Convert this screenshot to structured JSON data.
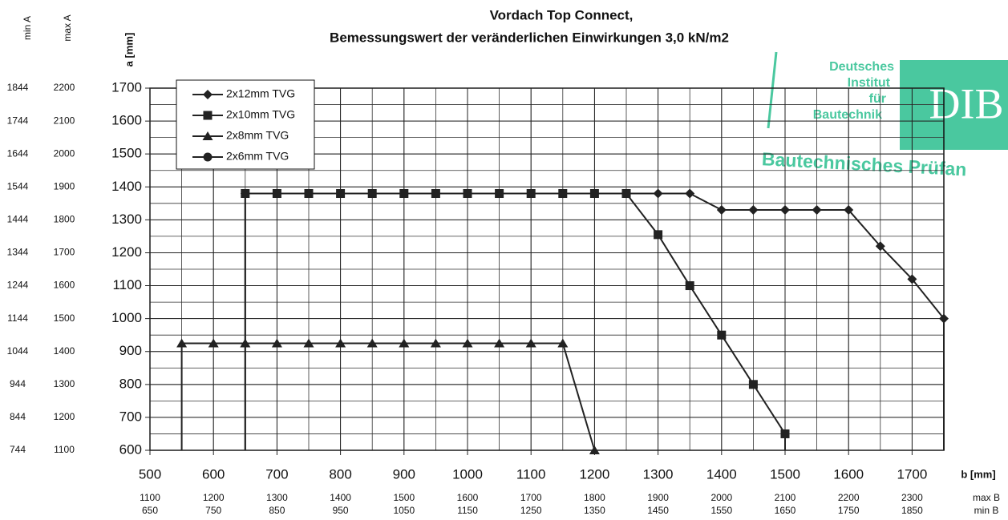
{
  "chart_data": {
    "type": "line",
    "title": "Vordach Top Connect,",
    "subtitle": "Bemessungswert der veränderlichen Einwirkungen 3,0 kN/m2",
    "ylabel": "a [mm]",
    "xlabel": "b [mm]",
    "x": [
      550,
      600,
      650,
      700,
      750,
      800,
      850,
      900,
      950,
      1000,
      1050,
      1100,
      1150,
      1200,
      1250,
      1300,
      1350,
      1400,
      1450,
      1500,
      1550,
      1600,
      1650,
      1700,
      1750
    ],
    "series": [
      {
        "name": "2x12mm TVG",
        "marker": "diamond",
        "color": "#222222",
        "values": [
          null,
          null,
          1380,
          1380,
          1380,
          1380,
          1380,
          1380,
          1380,
          1380,
          1380,
          1380,
          1380,
          1380,
          1380,
          1380,
          1380,
          1330,
          1330,
          1330,
          1330,
          1330,
          1220,
          1120,
          1000
        ]
      },
      {
        "name": "2x10mm TVG",
        "marker": "square",
        "color": "#222222",
        "values": [
          null,
          null,
          1380,
          1380,
          1380,
          1380,
          1380,
          1380,
          1380,
          1380,
          1380,
          1380,
          1380,
          1380,
          1380,
          1255,
          1100,
          950,
          800,
          650,
          null,
          null,
          null,
          null,
          null
        ]
      },
      {
        "name": "2x8mm TVG",
        "marker": "triangle",
        "color": "#222222",
        "values": [
          925,
          925,
          925,
          925,
          925,
          925,
          925,
          925,
          925,
          925,
          925,
          925,
          925,
          600,
          null,
          null,
          null,
          null,
          null,
          null,
          null,
          null,
          null,
          null,
          null
        ]
      },
      {
        "name": "2x6mm TVG",
        "marker": "circle",
        "color": "#222222",
        "values": [
          null,
          null,
          null,
          null,
          null,
          null,
          null,
          null,
          null,
          null,
          null,
          null,
          null,
          null,
          null,
          null,
          null,
          null,
          null,
          null,
          null,
          null,
          null,
          null,
          null
        ]
      }
    ],
    "xlim": [
      500,
      1750
    ],
    "ylim": [
      600,
      1700
    ],
    "xticks": [
      500,
      600,
      700,
      800,
      900,
      1000,
      1100,
      1200,
      1300,
      1400,
      1500,
      1600,
      1700
    ],
    "yticks": [
      600,
      700,
      800,
      900,
      1000,
      1100,
      1200,
      1300,
      1400,
      1500,
      1600,
      1700
    ],
    "grid_step": 50,
    "drop_lines": true,
    "min_a_header": "min A",
    "max_a_header": "max A",
    "min_a": [
      744,
      844,
      944,
      1044,
      1144,
      1244,
      1344,
      1444,
      1544,
      1644,
      1744,
      1844
    ],
    "max_a": [
      1100,
      1200,
      1300,
      1400,
      1500,
      1600,
      1700,
      1800,
      1900,
      2000,
      2100,
      2200
    ],
    "max_b_header": "max B",
    "min_b_header": "min B",
    "max_b": [
      1100,
      1200,
      1300,
      1400,
      1500,
      1600,
      1700,
      1800,
      1900,
      2000,
      2100,
      2200,
      2300
    ],
    "min_b": [
      650,
      750,
      850,
      950,
      1050,
      1150,
      1250,
      1350,
      1450,
      1550,
      1650,
      1750,
      1850
    ],
    "stamp": {
      "lines": [
        "Deutsches",
        "Institut",
        "für",
        "Bautechnik"
      ],
      "logo": "DIB",
      "caption": "Bautechnisches Prüfan",
      "color": "#2bbf8f"
    }
  }
}
